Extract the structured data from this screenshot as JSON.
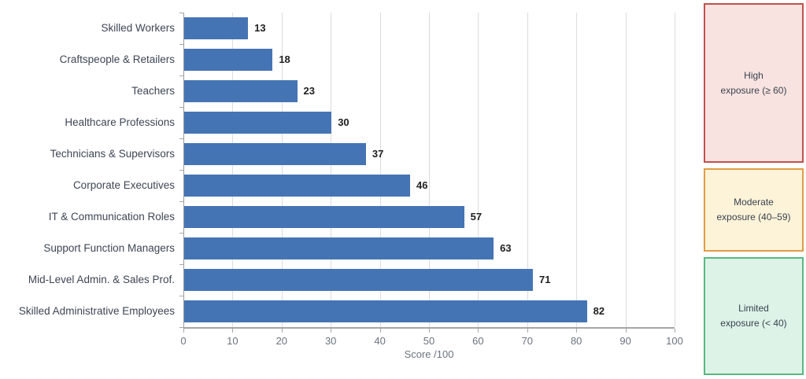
{
  "chart_data": {
    "type": "bar",
    "orientation": "horizontal",
    "title": "",
    "categories": [
      "Skilled Workers",
      "Craftspeople & Retailers",
      "Teachers",
      "Healthcare Professions",
      "Technicians & Supervisors",
      "Corporate Executives",
      "IT & Communication Roles",
      "Support Function Managers",
      "Mid-Level Admin. & Sales Prof.",
      "Skilled Administrative Employees"
    ],
    "values": [
      13,
      18,
      23,
      30,
      37,
      46,
      57,
      63,
      71,
      82
    ],
    "xlabel": "Score /100",
    "ylabel": "",
    "xlim": [
      0,
      100
    ],
    "xticks": [
      0,
      10,
      20,
      30,
      40,
      50,
      60,
      70,
      80,
      90,
      100
    ],
    "grid": true,
    "bar_color": "#4574b4",
    "legend_position": "right"
  },
  "legend": {
    "items": [
      {
        "name": "high-exposure",
        "line1": "High",
        "line2": "exposure (≥ 60)",
        "bg": "#f8e3e0",
        "border": "#c0504d"
      },
      {
        "name": "moderate-exposure",
        "line1": "Moderate",
        "line2": "exposure (40–59)",
        "bg": "#fcf3d8",
        "border": "#e09c47"
      },
      {
        "name": "limited-exposure",
        "line1": "Limited",
        "line2": "exposure (< 40)",
        "bg": "#ddf3e7",
        "border": "#58b87e"
      }
    ]
  }
}
